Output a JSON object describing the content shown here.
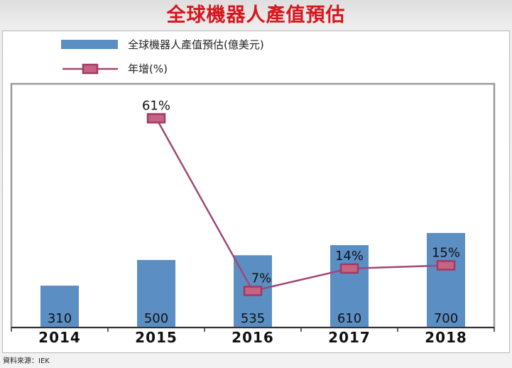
{
  "title": "全球機器人產值預估",
  "source": "資料來源：IEK",
  "colors": {
    "bar": "#5b8fc3",
    "line": "#a04877",
    "marker_fill": "#c66482",
    "marker_stroke": "#a03a63",
    "title": "#d8141c"
  },
  "chart_data": {
    "type": "bar",
    "categories": [
      "2014",
      "2015",
      "2016",
      "2017",
      "2018"
    ],
    "series": [
      {
        "name": "全球機器人產值預估(億美元)",
        "type": "bar",
        "values": [
          310,
          500,
          535,
          610,
          700
        ]
      },
      {
        "name": "年增(%)",
        "type": "line",
        "values": [
          null,
          61,
          7,
          14,
          15
        ],
        "labels": [
          "",
          "61%",
          "7%",
          "14%",
          "15%"
        ]
      }
    ],
    "bar_ylim": [
      0,
      800
    ],
    "line_ylim": [
      0,
      71
    ],
    "legend": "top-left",
    "grid": false
  }
}
